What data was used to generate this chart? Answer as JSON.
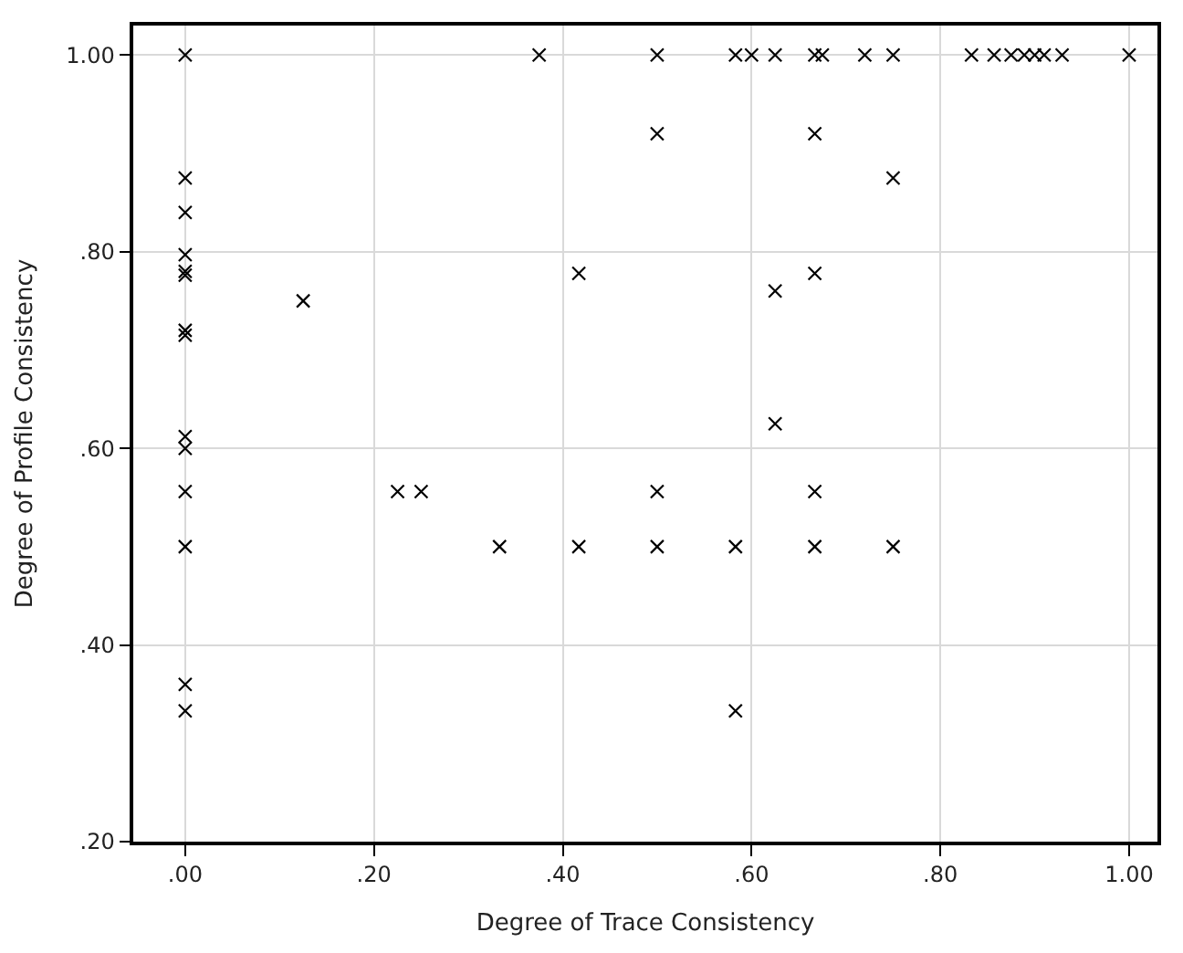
{
  "chart_data": {
    "type": "scatter",
    "xlabel": "Degree of Trace Consistency",
    "ylabel": "Degree of Profile Consistency",
    "x": [
      0,
      0,
      0,
      0,
      0,
      0,
      0,
      0,
      0,
      0,
      0,
      0,
      0,
      0,
      0.125,
      0.225,
      0.25,
      0.333,
      0.375,
      0.417,
      0.417,
      0.5,
      0.5,
      0.5,
      0.5,
      0.583,
      0.583,
      0.583,
      0.6,
      0.625,
      0.625,
      0.625,
      0.667,
      0.667,
      0.667,
      0.667,
      0.667,
      0.675,
      0.72,
      0.75,
      0.75,
      0.75,
      0.833,
      0.857,
      0.875,
      0.889,
      0.9,
      0.91,
      0.929,
      1.0
    ],
    "series": [
      {
        "color": "#000000",
        "values": [
          1.0,
          0.875,
          0.84,
          0.797,
          0.78,
          0.776,
          0.72,
          0.715,
          0.612,
          0.6,
          0.556,
          0.5,
          0.36,
          0.333,
          0.75,
          0.556,
          0.556,
          0.5,
          1.0,
          0.778,
          0.5,
          1.0,
          0.92,
          0.556,
          0.5,
          1.0,
          0.5,
          0.333,
          1.0,
          1.0,
          0.76,
          0.625,
          1.0,
          0.92,
          0.778,
          0.556,
          0.5,
          1.0,
          1.0,
          1.0,
          0.875,
          0.5,
          1.0,
          1.0,
          1.0,
          1.0,
          1.0,
          1.0,
          1.0,
          1.0
        ]
      }
    ],
    "xlim": [
      -0.055,
      1.03
    ],
    "ylim": [
      0.2,
      1.03
    ],
    "xticks": [
      {
        "value": 0,
        "label": ".00"
      },
      {
        "value": 0.2,
        "label": ".20"
      },
      {
        "value": 0.4,
        "label": ".40"
      },
      {
        "value": 0.6,
        "label": ".60"
      },
      {
        "value": 0.8,
        "label": ".80"
      },
      {
        "value": 1.0,
        "label": "1.00"
      }
    ],
    "yticks": [
      {
        "value": 0.2,
        "label": ".20"
      },
      {
        "value": 0.4,
        "label": ".40"
      },
      {
        "value": 0.6,
        "label": ".60"
      },
      {
        "value": 0.8,
        "label": ".80"
      },
      {
        "value": 1.0,
        "label": "1.00"
      }
    ],
    "grid": true,
    "marker": "cross"
  }
}
